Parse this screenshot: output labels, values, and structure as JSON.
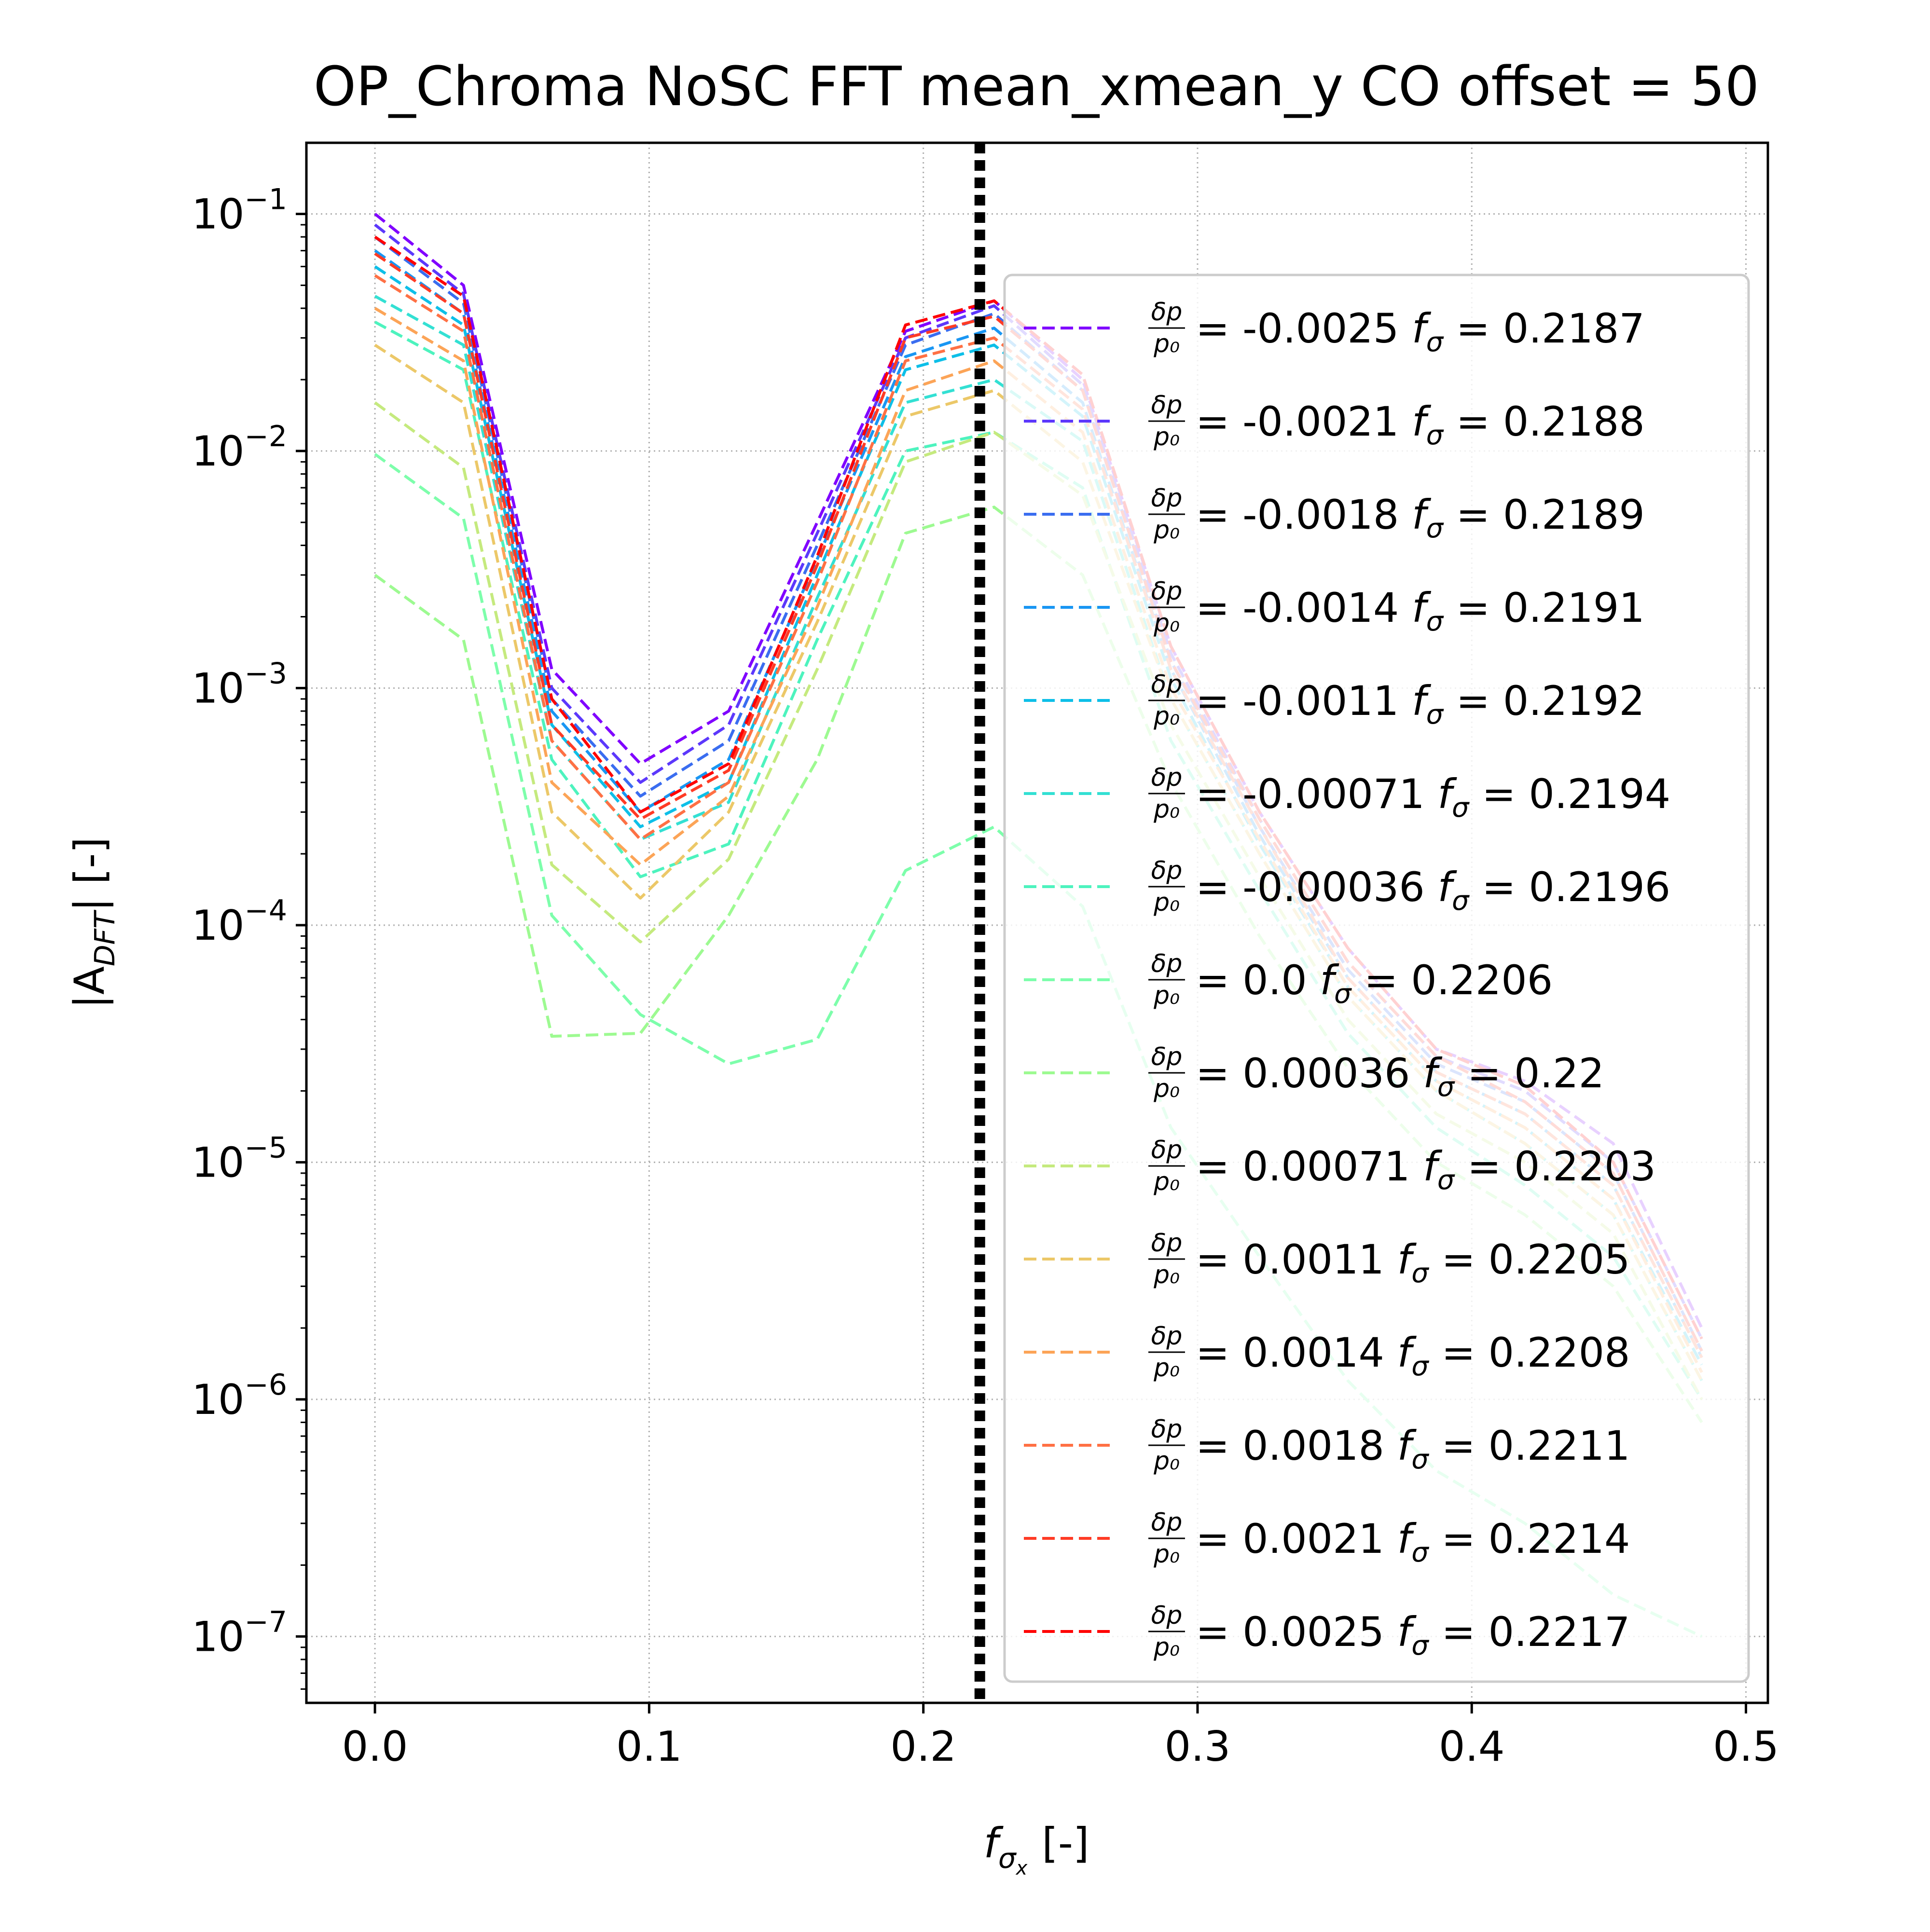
{
  "chart_data": {
    "type": "line",
    "title": "OP_Chroma NoSC FFT mean_xmean_y CO offset = 50",
    "xlabel_main": "f",
    "xlabel_sub": "σ",
    "xlabel_subsub": "x",
    "xlabel_unit": "[-]",
    "ylabel_main": "|A",
    "ylabel_sub": "DFT",
    "ylabel_end": "| [-]",
    "y_scale": "log",
    "xlim": [
      -0.025,
      0.508
    ],
    "ylim_log10": [
      -7.28,
      -0.7
    ],
    "x_ticks": [
      {
        "value": 0.0,
        "label": "0.0"
      },
      {
        "value": 0.1,
        "label": "0.1"
      },
      {
        "value": 0.2,
        "label": "0.2"
      },
      {
        "value": 0.3,
        "label": "0.3"
      },
      {
        "value": 0.4,
        "label": "0.4"
      },
      {
        "value": 0.5,
        "label": "0.5"
      }
    ],
    "y_ticks": [
      {
        "exp": -1,
        "base": "10",
        "sup": "−1"
      },
      {
        "exp": -2,
        "base": "10",
        "sup": "−2"
      },
      {
        "exp": -3,
        "base": "10",
        "sup": "−3"
      },
      {
        "exp": -4,
        "base": "10",
        "sup": "−4"
      },
      {
        "exp": -5,
        "base": "10",
        "sup": "−5"
      },
      {
        "exp": -6,
        "base": "10",
        "sup": "−6"
      },
      {
        "exp": -7,
        "base": "10",
        "sup": "−7"
      }
    ],
    "grid": true,
    "vline_x": 0.2206,
    "legend_position": "right",
    "legend_frac_num": "δp",
    "legend_frac_den": "p₀",
    "legend_f_label": "f",
    "legend_f_sub": "σ",
    "x": [
      0.0,
      0.0323,
      0.0645,
      0.0968,
      0.129,
      0.1613,
      0.1935,
      0.2258,
      0.2581,
      0.2903,
      0.3226,
      0.3548,
      0.3871,
      0.4194,
      0.4516,
      0.4839
    ],
    "series": [
      {
        "name": "-0.0025",
        "f_sigma": "0.2187",
        "color": "#8000ff",
        "values": [
          0.1,
          0.05,
          0.0012,
          0.00048,
          0.0008,
          0.005,
          0.032,
          0.043,
          0.02,
          0.0015,
          0.0003,
          8e-05,
          3e-05,
          2.2e-05,
          1.2e-05,
          2e-06
        ]
      },
      {
        "name": "-0.0021",
        "f_sigma": "0.2188",
        "color": "#5c38fc",
        "values": [
          0.09,
          0.046,
          0.001,
          0.0004,
          0.0007,
          0.0045,
          0.03,
          0.041,
          0.019,
          0.0014,
          0.00028,
          7e-05,
          2.8e-05,
          2e-05,
          1e-05,
          1.8e-06
        ]
      },
      {
        "name": "-0.0018",
        "f_sigma": "0.2189",
        "color": "#3a6df0",
        "values": [
          0.08,
          0.042,
          0.0009,
          0.00035,
          0.0006,
          0.004,
          0.028,
          0.038,
          0.018,
          0.0013,
          0.00026,
          6.5e-05,
          2.6e-05,
          1.8e-05,
          9e-06,
          1.6e-06
        ]
      },
      {
        "name": "-0.0014",
        "f_sigma": "0.2191",
        "color": "#1996f3",
        "values": [
          0.07,
          0.038,
          0.0008,
          0.0003,
          0.0005,
          0.0035,
          0.025,
          0.033,
          0.016,
          0.0012,
          0.00024,
          6e-05,
          2.4e-05,
          1.6e-05,
          8e-06,
          1.5e-06
        ]
      },
      {
        "name": "-0.0011",
        "f_sigma": "0.2192",
        "color": "#0dbfe8",
        "values": [
          0.06,
          0.034,
          0.0007,
          0.00026,
          0.0004,
          0.003,
          0.022,
          0.028,
          0.014,
          0.0011,
          0.00022,
          5.5e-05,
          2.2e-05,
          1.4e-05,
          7e-06,
          1.4e-06
        ]
      },
      {
        "name": "-0.00071",
        "f_sigma": "0.2194",
        "color": "#33e0d3",
        "values": [
          0.045,
          0.028,
          0.0006,
          0.00023,
          0.00033,
          0.0024,
          0.016,
          0.02,
          0.011,
          0.0009,
          0.0002,
          5e-05,
          2e-05,
          1.2e-05,
          6e-06,
          1.2e-06
        ]
      },
      {
        "name": "-0.00036",
        "f_sigma": "0.2196",
        "color": "#4df3be",
        "values": [
          0.035,
          0.022,
          0.0005,
          0.00016,
          0.00022,
          0.0016,
          0.01,
          0.012,
          0.007,
          0.0006,
          0.00014,
          3.5e-05,
          1.4e-05,
          8e-06,
          4e-06,
          1e-06
        ]
      },
      {
        "name": "0.0",
        "f_sigma": "0.2206",
        "color": "#7dfeab",
        "values": [
          0.0097,
          0.0052,
          0.00011,
          4.2e-05,
          2.6e-05,
          3.3e-05,
          0.00017,
          0.00026,
          0.00012,
          1.4e-05,
          4e-06,
          1.2e-06,
          5e-07,
          3e-07,
          1.5e-07,
          1e-07
        ]
      },
      {
        "name": "0.00036",
        "f_sigma": "0.22",
        "color": "#9dfa91",
        "values": [
          0.003,
          0.0016,
          3.4e-05,
          3.5e-05,
          0.00011,
          0.0005,
          0.0045,
          0.0058,
          0.003,
          0.0004,
          9e-05,
          2.5e-05,
          1e-05,
          6e-06,
          3e-06,
          8e-07
        ]
      },
      {
        "name": "0.00071",
        "f_sigma": "0.2203",
        "color": "#c5ea7e",
        "values": [
          0.016,
          0.0085,
          0.00018,
          8.5e-05,
          0.00019,
          0.0012,
          0.009,
          0.012,
          0.0065,
          0.0007,
          0.00016,
          4e-05,
          1.6e-05,
          1e-05,
          5e-06,
          1e-06
        ]
      },
      {
        "name": "0.0011",
        "f_sigma": "0.2205",
        "color": "#ecc868",
        "values": [
          0.028,
          0.016,
          0.0003,
          0.00013,
          0.0003,
          0.0019,
          0.014,
          0.018,
          0.009,
          0.0009,
          0.0002,
          5e-05,
          2e-05,
          1.2e-05,
          6e-06,
          1.2e-06
        ]
      },
      {
        "name": "0.0014",
        "f_sigma": "0.2208",
        "color": "#fca457",
        "values": [
          0.04,
          0.024,
          0.0004,
          0.00018,
          0.00035,
          0.0022,
          0.018,
          0.024,
          0.012,
          0.001,
          0.00023,
          5.5e-05,
          2.2e-05,
          1.4e-05,
          7e-06,
          1.3e-06
        ]
      },
      {
        "name": "0.0018",
        "f_sigma": "0.2211",
        "color": "#ff7044",
        "values": [
          0.055,
          0.032,
          0.0006,
          0.00023,
          0.0004,
          0.0028,
          0.024,
          0.03,
          0.015,
          0.0012,
          0.00026,
          6e-05,
          2.4e-05,
          1.6e-05,
          8e-06,
          1.5e-06
        ]
      },
      {
        "name": "0.0021",
        "f_sigma": "0.2214",
        "color": "#ff3b25",
        "values": [
          0.068,
          0.038,
          0.0007,
          0.00028,
          0.00045,
          0.0033,
          0.03,
          0.037,
          0.018,
          0.0013,
          0.00028,
          7e-05,
          2.8e-05,
          1.8e-05,
          9e-06,
          1.6e-06
        ]
      },
      {
        "name": "0.0025",
        "f_sigma": "0.2217",
        "color": "#ff0000",
        "values": [
          0.08,
          0.045,
          0.0009,
          0.0003,
          0.00048,
          0.0036,
          0.034,
          0.043,
          0.021,
          0.0015,
          0.0003,
          8e-05,
          3e-05,
          2.1e-05,
          1e-05,
          1.8e-06
        ]
      }
    ]
  }
}
